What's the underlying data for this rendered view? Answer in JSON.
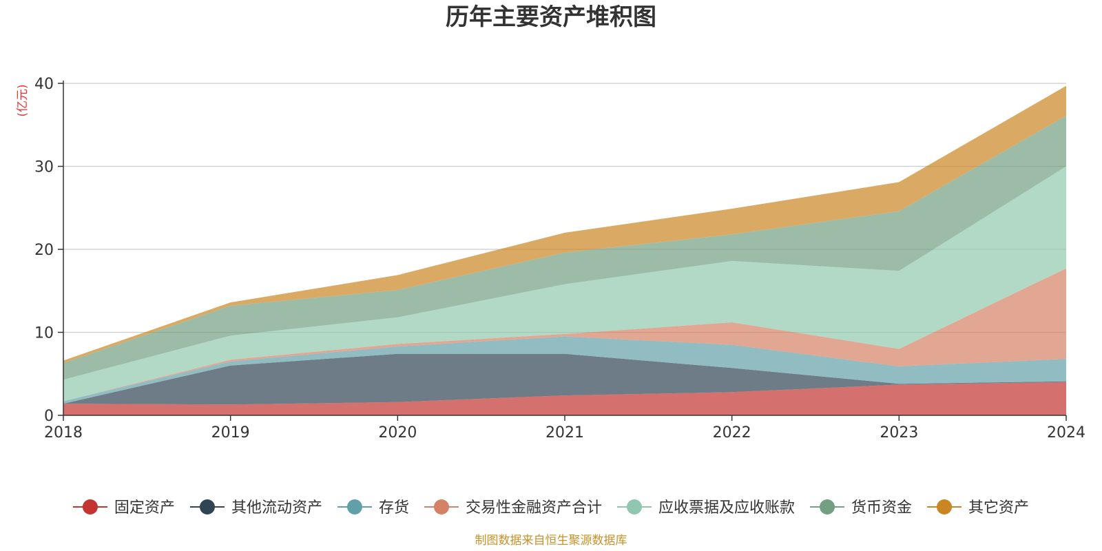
{
  "chart_data": {
    "type": "area",
    "stacked": true,
    "title": "历年主要资产堆积图",
    "unit_label": "(亿元)",
    "source_note": "制图数据来自恒生聚源数据库",
    "x": [
      "2018",
      "2019",
      "2020",
      "2021",
      "2022",
      "2023",
      "2024"
    ],
    "ylim": [
      0,
      40
    ],
    "yticks": [
      0,
      10,
      20,
      30,
      40
    ],
    "grid": true,
    "legend_position": "bottom",
    "series": [
      {
        "name": "固定资产",
        "color": "#c23531",
        "values": [
          1.4,
          1.3,
          1.6,
          2.4,
          2.8,
          3.7,
          4.0
        ]
      },
      {
        "name": "其他流动资产",
        "color": "#2f4554",
        "values": [
          0.0,
          4.7,
          5.8,
          5.0,
          2.9,
          0.1,
          0.1
        ]
      },
      {
        "name": "存货",
        "color": "#61a0a8",
        "values": [
          0.3,
          0.5,
          0.9,
          2.1,
          2.8,
          2.1,
          2.7
        ]
      },
      {
        "name": "交易性金融资产合计",
        "color": "#d48265",
        "values": [
          0.0,
          0.2,
          0.3,
          0.3,
          2.7,
          2.1,
          10.9
        ]
      },
      {
        "name": "应收票据及应收账款",
        "color": "#91c7ae",
        "values": [
          2.6,
          2.9,
          3.2,
          6.0,
          7.4,
          9.4,
          12.3
        ]
      },
      {
        "name": "货币资金",
        "color": "#749f83",
        "values": [
          2.0,
          3.6,
          3.3,
          3.8,
          3.2,
          7.2,
          6.1
        ]
      },
      {
        "name": "其它资产",
        "color": "#ca8622",
        "values": [
          0.3,
          0.4,
          1.8,
          2.4,
          3.1,
          3.5,
          3.6
        ]
      }
    ]
  }
}
